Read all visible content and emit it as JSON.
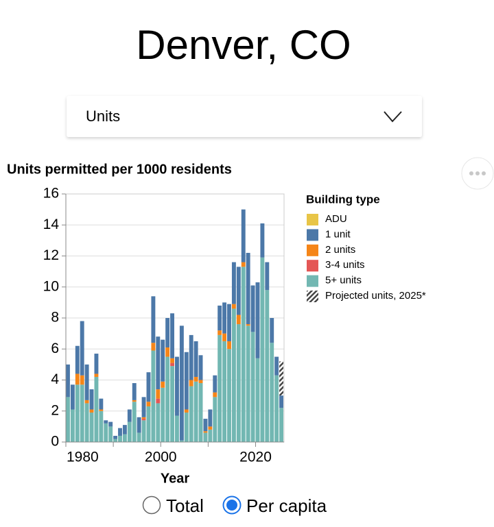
{
  "page": {
    "title": "Denver, CO",
    "dropdown": "Units",
    "radio": {
      "options": [
        "Total",
        "Per capita"
      ],
      "selected": 1
    }
  },
  "chart_data": {
    "type": "bar",
    "stacked": true,
    "title": "Units permitted per 1000 residents",
    "x_label": "Year",
    "legend_title": "Building type",
    "x": [
      1980,
      1981,
      1982,
      1983,
      1984,
      1985,
      1986,
      1987,
      1988,
      1989,
      1990,
      1991,
      1992,
      1993,
      1994,
      1995,
      1996,
      1997,
      1998,
      1999,
      2000,
      2001,
      2002,
      2003,
      2004,
      2005,
      2006,
      2007,
      2008,
      2009,
      2010,
      2011,
      2012,
      2013,
      2014,
      2015,
      2016,
      2017,
      2018,
      2019,
      2020,
      2021,
      2022,
      2023,
      2024,
      2025
    ],
    "xlim": [
      1980,
      2026
    ],
    "xticks": [
      1980,
      2000,
      2020
    ],
    "xminor_ticks": [
      1990,
      2010
    ],
    "ylim": [
      0,
      16
    ],
    "yticks": [
      0,
      2,
      4,
      6,
      8,
      10,
      12,
      14,
      16
    ],
    "grid": true,
    "series": [
      {
        "name": "ADU",
        "color": "#e8c547",
        "values": [
          0,
          0,
          0,
          0,
          0,
          0,
          0,
          0,
          0,
          0,
          0,
          0,
          0,
          0,
          0,
          0,
          0,
          0,
          0,
          0,
          0,
          0,
          0,
          0,
          0,
          0,
          0,
          0,
          0,
          0,
          0,
          0,
          0,
          0,
          0,
          0,
          0,
          0,
          0,
          0,
          0,
          0,
          0,
          0,
          0,
          0
        ]
      },
      {
        "name": "1 unit",
        "color": "#4c78a8",
        "values": [
          2.1,
          1.6,
          1.8,
          3.5,
          2.3,
          1.3,
          1.3,
          0.7,
          0.2,
          0.3,
          0.2,
          0.5,
          0.6,
          0.8,
          1.1,
          1.0,
          1.3,
          1.9,
          3.0,
          3.4,
          2.7,
          1.9,
          2.9,
          3.8,
          7.4,
          3.7,
          2.9,
          2.3,
          1.6,
          0.8,
          1.1,
          1.1,
          1.6,
          2.0,
          2.4,
          2.7,
          3.1,
          3.4,
          4.6,
          3.0,
          4.9,
          2.2,
          1.8,
          1.6,
          1.2,
          0.8
        ]
      },
      {
        "name": "2 units",
        "color": "#f58518",
        "values": [
          0,
          0,
          0.7,
          0.6,
          0.2,
          0.2,
          0.2,
          0.1,
          0,
          0,
          0,
          0,
          0,
          0,
          0.1,
          0,
          0.1,
          0.3,
          0.5,
          0.6,
          0.4,
          0.6,
          0.3,
          0,
          0,
          0.2,
          0.4,
          0.3,
          0.2,
          0.1,
          0.2,
          0.3,
          0.3,
          0.5,
          0.5,
          0.3,
          0.6,
          0.3,
          0.1,
          0,
          0,
          0,
          0,
          0,
          0,
          0
        ]
      },
      {
        "name": "3-4 units",
        "color": "#e45756",
        "values": [
          0,
          0,
          0,
          0,
          0,
          0,
          0,
          0,
          0,
          0,
          0,
          0,
          0,
          0,
          0,
          0,
          0.1,
          0,
          0,
          0.3,
          0,
          0,
          0.2,
          0,
          0,
          0,
          0,
          0,
          0,
          0,
          0,
          0,
          0,
          0,
          0,
          0,
          0,
          0,
          0,
          0,
          0,
          0,
          0,
          0,
          0,
          0
        ]
      },
      {
        "name": "5+ units",
        "color": "#72b7b2",
        "values": [
          2.9,
          2.1,
          3.7,
          3.7,
          2.5,
          1.9,
          4.2,
          2.0,
          1.2,
          1.0,
          0.2,
          0.4,
          0.5,
          1.3,
          2.6,
          0.6,
          1.4,
          2.3,
          5.9,
          2.5,
          3.5,
          5.5,
          4.9,
          1.7,
          0.1,
          1.9,
          3.6,
          3.9,
          3.8,
          0.6,
          0.8,
          2.9,
          6.9,
          6.5,
          6.0,
          8.6,
          7.6,
          11.3,
          7.5,
          7.1,
          5.4,
          11.9,
          9.8,
          6.4,
          4.3,
          2.2
        ]
      },
      {
        "name": "Projected units, 2025*",
        "color": "#444444",
        "pattern": "hatch",
        "values": [
          null,
          null,
          null,
          null,
          null,
          null,
          null,
          null,
          null,
          null,
          null,
          null,
          null,
          null,
          null,
          null,
          null,
          null,
          null,
          null,
          null,
          null,
          null,
          null,
          null,
          null,
          null,
          null,
          null,
          null,
          null,
          null,
          null,
          null,
          null,
          null,
          null,
          null,
          null,
          null,
          null,
          null,
          null,
          null,
          null,
          2.2
        ]
      }
    ]
  }
}
